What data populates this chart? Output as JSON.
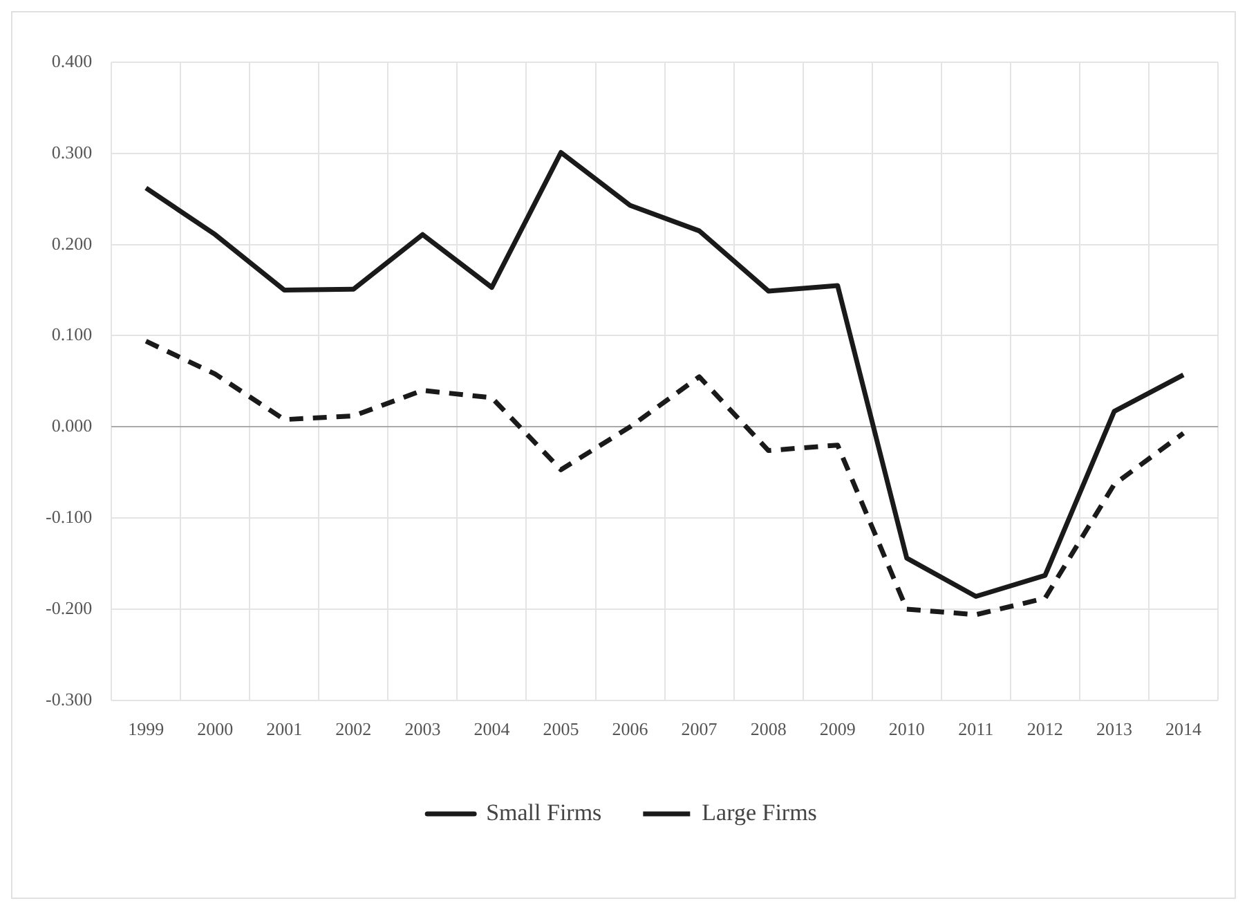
{
  "chart_data": {
    "type": "line",
    "categories": [
      "1999",
      "2000",
      "2001",
      "2002",
      "2003",
      "2004",
      "2005",
      "2006",
      "2007",
      "2008",
      "2009",
      "2010",
      "2011",
      "2012",
      "2013",
      "2014"
    ],
    "series": [
      {
        "name": "Small Firms",
        "color": "#1a1a1a",
        "line_style": "solid",
        "values": [
          0.262,
          0.211,
          0.15,
          0.151,
          0.211,
          0.153,
          0.301,
          0.243,
          0.215,
          0.149,
          0.155,
          -0.144,
          -0.186,
          -0.163,
          0.017,
          0.057
        ]
      },
      {
        "name": "Large Firms",
        "color": "#1a1a1a",
        "line_style": "dashed",
        "values": [
          0.094,
          0.058,
          0.008,
          0.012,
          0.04,
          0.032,
          -0.047,
          0.0,
          0.055,
          -0.026,
          -0.02,
          -0.2,
          -0.206,
          -0.188,
          -0.063,
          -0.007
        ]
      }
    ],
    "ylim": [
      -0.3,
      0.4
    ],
    "yticks": [
      {
        "value": -0.3,
        "label": "-0.300"
      },
      {
        "value": -0.2,
        "label": "-0.200"
      },
      {
        "value": -0.1,
        "label": "-0.100"
      },
      {
        "value": 0,
        "label": "0.000"
      },
      {
        "value": 0.1,
        "label": "0.100"
      },
      {
        "value": 0.2,
        "label": "0.200"
      },
      {
        "value": 0.3,
        "label": "0.300"
      },
      {
        "value": 0.4,
        "label": "0.400"
      }
    ],
    "grid": true,
    "legend": "bottom",
    "marker": "none"
  }
}
